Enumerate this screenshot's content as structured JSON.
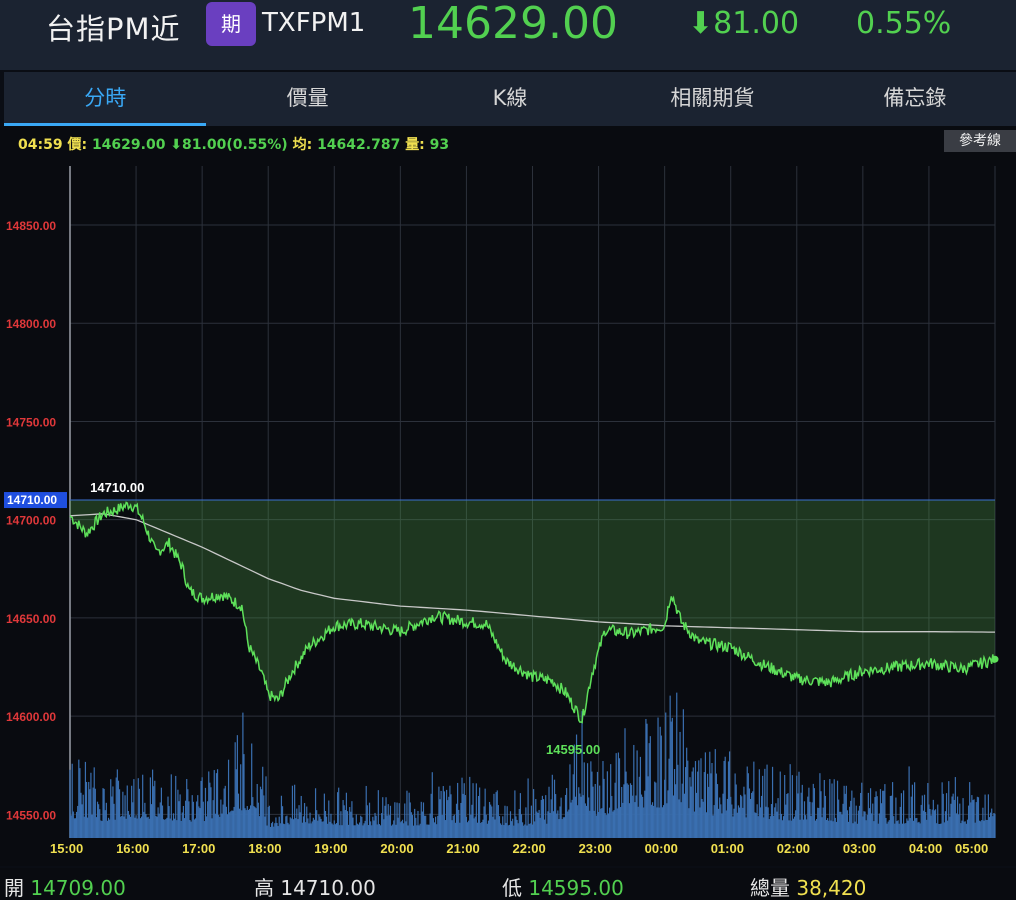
{
  "header": {
    "name": "台指PM近",
    "badge": "期",
    "code": "TXFPM1",
    "price": "14629.00",
    "change": "81.00",
    "change_pct": "0.55%",
    "down_color": "#52d050"
  },
  "tabs": [
    {
      "label": "分時",
      "active": true
    },
    {
      "label": "價量",
      "active": false
    },
    {
      "label": "K線",
      "active": false
    },
    {
      "label": "相關期貨",
      "active": false
    },
    {
      "label": "備忘錄",
      "active": false
    }
  ],
  "infoline": {
    "time": "04:59",
    "price_label": "價:",
    "price_value": "14629.00 ⬇81.00(0.55%)",
    "avg_label": "均:",
    "avg_value": "14642.787",
    "vol_label": "量:",
    "vol_value": "93"
  },
  "reference_button": "參考線",
  "footer": {
    "open_label": "開",
    "open_value": "14709.00",
    "high_label": "高",
    "high_value": "14710.00",
    "low_label": "低",
    "low_value": "14595.00",
    "vol_label": "總量",
    "vol_value": "38,420"
  },
  "chart_data": {
    "type": "line",
    "reference_price": 14710.0,
    "reference_label": "14710.00",
    "high_annotation": "14710.00",
    "low_annotation": "14595.00",
    "ylim": [
      14538,
      14880
    ],
    "yticks": [
      "14850.00",
      "14800.00",
      "14750.00",
      "14700.00",
      "14650.00",
      "14600.00",
      "14550.00"
    ],
    "ytick_values": [
      14850,
      14800,
      14750,
      14700,
      14650,
      14600,
      14550
    ],
    "xticks": [
      "15:00",
      "16:00",
      "17:00",
      "18:00",
      "19:00",
      "20:00",
      "21:00",
      "22:00",
      "23:00",
      "00:00",
      "01:00",
      "02:00",
      "03:00",
      "04:00",
      "05:00"
    ],
    "price_hours": [
      0,
      0.25,
      0.5,
      0.7,
      0.9,
      1.0,
      1.1,
      1.3,
      1.5,
      1.7,
      1.8,
      2.0,
      2.3,
      2.6,
      2.7,
      2.9,
      3.0,
      3.15,
      3.35,
      3.6,
      4.0,
      4.4,
      5.0,
      5.5,
      6.0,
      6.3,
      6.6,
      7.0,
      7.3,
      7.5,
      7.75,
      7.9,
      8.1,
      8.5,
      9.0,
      9.1,
      9.25,
      9.5,
      10.0,
      10.5,
      11.0,
      11.5,
      12.0,
      12.5,
      13.0,
      13.5,
      14.0
    ],
    "price": [
      14702,
      14693,
      14703,
      14705,
      14708,
      14706,
      14700,
      14683,
      14688,
      14676,
      14664,
      14660,
      14662,
      14656,
      14636,
      14622,
      14611,
      14608,
      14622,
      14635,
      14646,
      14647,
      14643,
      14651,
      14648,
      14647,
      14628,
      14620,
      14618,
      14612,
      14598,
      14622,
      14644,
      14642,
      14646,
      14663,
      14648,
      14638,
      14635,
      14626,
      14619,
      14617,
      14623,
      14625,
      14627,
      14624,
      14629
    ],
    "avg_hours": [
      0,
      0.5,
      1.0,
      1.5,
      2.0,
      2.5,
      3.0,
      3.5,
      4.0,
      5.0,
      6.0,
      7.0,
      8.0,
      9.0,
      10.0,
      11.0,
      12.0,
      13.0,
      14.0
    ],
    "avg": [
      14702,
      14703,
      14700,
      14693,
      14686,
      14678,
      14670,
      14664,
      14660,
      14656,
      14654,
      14651,
      14648,
      14646,
      14645,
      14644,
      14643,
      14643,
      14642.787
    ],
    "volume_note": "volume bars per minute (relative), peaks near 18:00, 22:40 and 00:00",
    "volume_peak_hours": [
      0.1,
      0.5,
      1.05,
      2.0,
      2.5,
      2.7,
      2.9,
      3.0,
      3.5,
      4.1,
      5.2,
      6.0,
      6.8,
      7.3,
      7.6,
      7.75,
      7.85,
      8.0,
      8.5,
      9.0,
      9.1,
      9.5,
      10.0,
      11.0,
      11.1,
      11.5,
      12.0,
      13.0,
      13.5,
      14.0
    ],
    "volume_peak": [
      14585,
      14572,
      14578,
      14570,
      14590,
      14595,
      14580,
      14560,
      14567,
      14564,
      14563,
      14570,
      14562,
      14568,
      14585,
      14620,
      14595,
      14580,
      14600,
      14600,
      14625,
      14585,
      14582,
      14572,
      14575,
      14571,
      14566,
      14568,
      14563,
      14578
    ]
  }
}
